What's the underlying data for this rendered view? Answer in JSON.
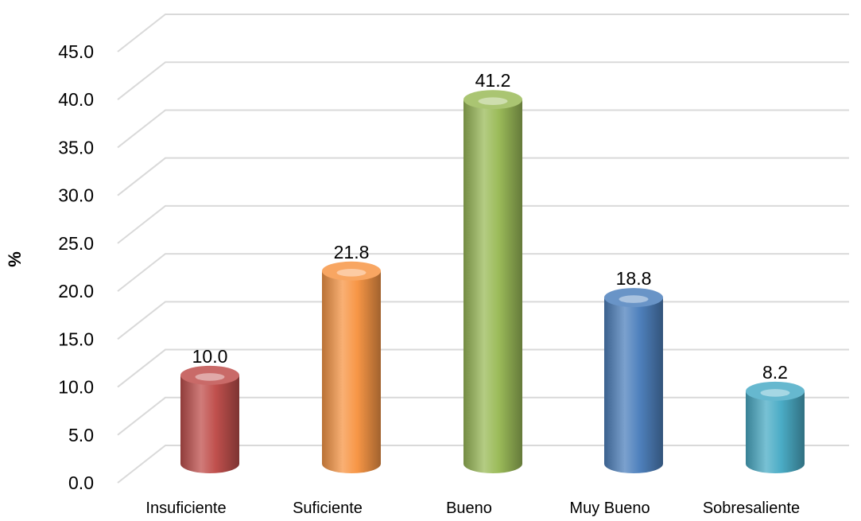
{
  "chart_data": {
    "type": "bar",
    "style": "3d-cylinder",
    "categories": [
      "Insuficiente",
      "Suficiente",
      "Bueno",
      "Muy Bueno",
      "Sobresaliente"
    ],
    "values": [
      10.0,
      21.8,
      41.2,
      18.8,
      8.2
    ],
    "data_labels": [
      "10.0",
      "21.8",
      "41.2",
      "18.8",
      "8.2"
    ],
    "colors": [
      "#c0504d",
      "#f79646",
      "#9bbb59",
      "#4f81bd",
      "#4bacc6"
    ],
    "ylabel": "%",
    "xlabel": "",
    "title": "",
    "ylim": [
      0,
      45
    ],
    "yticks": [
      "0.0",
      "5.0",
      "10.0",
      "15.0",
      "20.0",
      "25.0",
      "30.0",
      "35.0",
      "40.0",
      "45.0"
    ],
    "grid": true,
    "legend": "none"
  }
}
